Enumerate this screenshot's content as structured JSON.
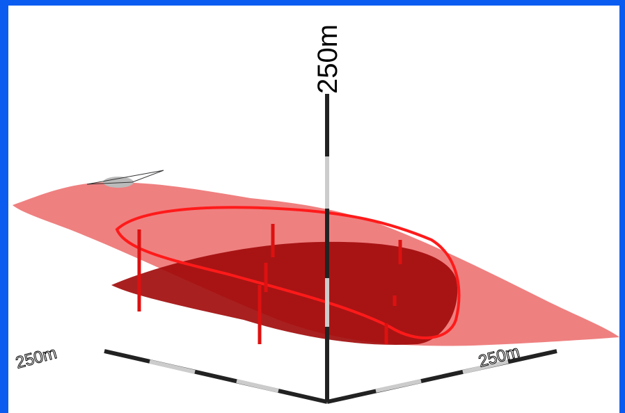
{
  "axes": {
    "vertical": "250m",
    "left": "250m",
    "right": "250m"
  }
}
